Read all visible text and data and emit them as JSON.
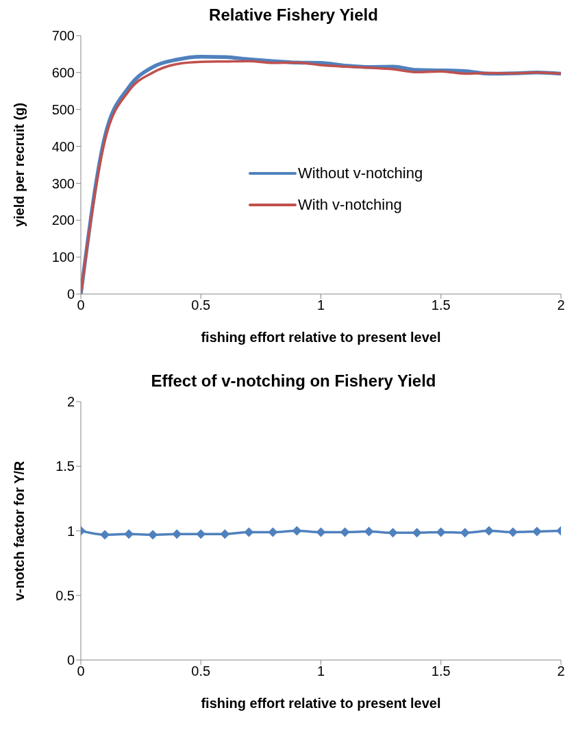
{
  "chart_data": [
    {
      "type": "line",
      "title": "Relative Fishery Yield",
      "xlabel": "fishing effort relative to present level",
      "ylabel": "yield per recruit (g)",
      "x": [
        0,
        0.1,
        0.2,
        0.3,
        0.4,
        0.5,
        0.6,
        0.7,
        0.8,
        0.9,
        1.0,
        1.1,
        1.2,
        1.3,
        1.4,
        1.5,
        1.6,
        1.7,
        1.8,
        1.9,
        2.0
      ],
      "series": [
        {
          "name": "Without v-notching",
          "color": "#4f81bd",
          "values": [
            0,
            426,
            560,
            615,
            635,
            643,
            642,
            636,
            631,
            627,
            626,
            619,
            615,
            616,
            607,
            606,
            604,
            597,
            598,
            600,
            597
          ]
        },
        {
          "name": "With v-notching",
          "color": "#c0504d",
          "values": [
            0,
            415,
            550,
            600,
            623,
            629,
            630,
            631,
            626,
            627,
            620,
            616,
            613,
            609,
            601,
            603,
            597,
            599,
            598,
            600,
            597
          ]
        }
      ],
      "xlim": [
        0,
        2
      ],
      "xticks": [
        0,
        0.5,
        1,
        1.5,
        2
      ],
      "ylim": [
        0,
        700
      ],
      "yticks": [
        0,
        100,
        200,
        300,
        400,
        500,
        600,
        700
      ],
      "grid": false,
      "legend": "right",
      "marker": "none",
      "line_style": "solid"
    },
    {
      "type": "line",
      "title": "Effect of v-notching on Fishery Yield",
      "xlabel": "fishing effort relative to present level",
      "ylabel": "v-notch factor for Y/R",
      "x": [
        0,
        0.1,
        0.2,
        0.3,
        0.4,
        0.5,
        0.6,
        0.7,
        0.8,
        0.9,
        1.0,
        1.1,
        1.2,
        1.3,
        1.4,
        1.5,
        1.6,
        1.7,
        1.8,
        1.9,
        2.0
      ],
      "series": [
        {
          "color": "#4f81bd",
          "values": [
            1,
            0.97,
            0.975,
            0.97,
            0.975,
            0.975,
            0.975,
            0.99,
            0.99,
            1.0,
            0.99,
            0.99,
            0.995,
            0.985,
            0.985,
            0.99,
            0.985,
            1.0,
            0.99,
            0.995,
            1.0
          ]
        }
      ],
      "xlim": [
        0,
        2
      ],
      "xticks": [
        0,
        0.5,
        1,
        1.5,
        2
      ],
      "ylim": [
        0,
        2
      ],
      "yticks": [
        0,
        0.5,
        1,
        1.5,
        2
      ],
      "grid": false,
      "legend": false,
      "marker": "diamond",
      "line_style": "solid"
    }
  ]
}
